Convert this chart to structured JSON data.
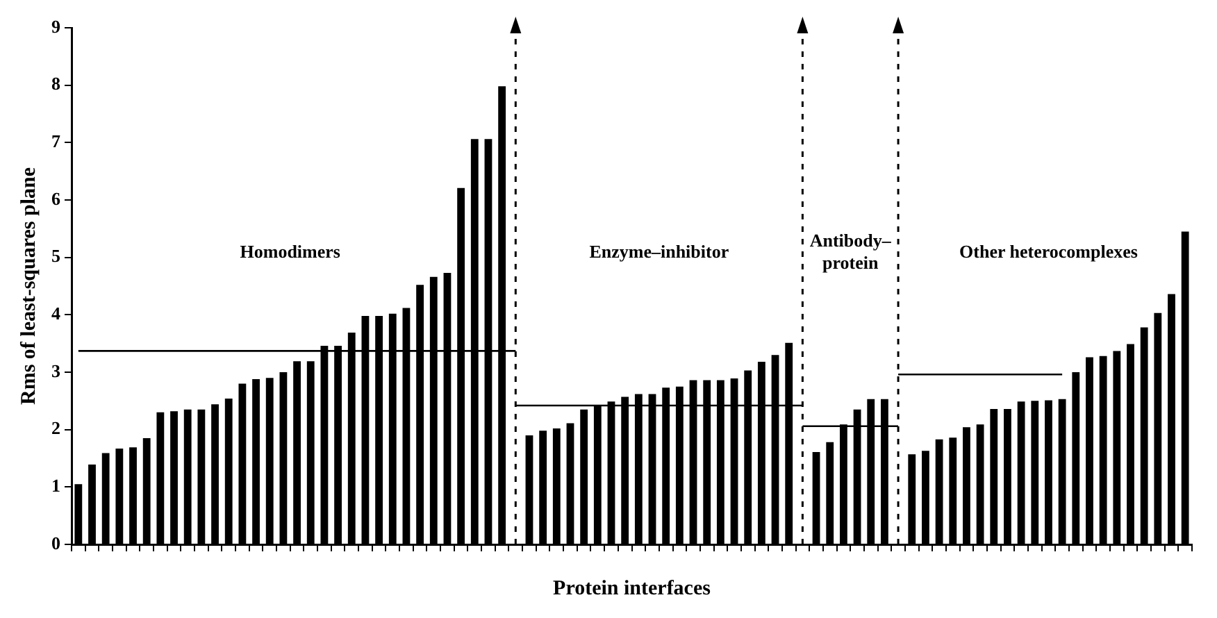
{
  "chart_data": {
    "type": "bar",
    "xlabel": "Protein interfaces",
    "ylabel": "Rms of least-squares plane",
    "categories": [
      null,
      null,
      null,
      null,
      null,
      null,
      null,
      null,
      null,
      null,
      null,
      null,
      null,
      null,
      null,
      null,
      null,
      null,
      null,
      null,
      null,
      null,
      null,
      null,
      null,
      null,
      null,
      null,
      null,
      null,
      null,
      null,
      null,
      null,
      null,
      null,
      null,
      null,
      null,
      null,
      null,
      null,
      null,
      null,
      null,
      null,
      null,
      null,
      null,
      null,
      null,
      null,
      null,
      null,
      null,
      null,
      null,
      null,
      null,
      null,
      null,
      null,
      null,
      null,
      null,
      null,
      null,
      null,
      null,
      null,
      null,
      null,
      null,
      null,
      null,
      null,
      null,
      null,
      null,
      null,
      null,
      null
    ],
    "series": [
      {
        "color": "#000000",
        "values": [
          1.05,
          1.39,
          1.59,
          1.67,
          1.69,
          1.85,
          2.3,
          2.32,
          2.35,
          2.35,
          2.44,
          2.54,
          2.8,
          2.88,
          2.9,
          3.0,
          3.19,
          3.19,
          3.46,
          3.46,
          3.69,
          3.98,
          3.98,
          4.02,
          4.12,
          4.52,
          4.66,
          4.73,
          6.21,
          7.06,
          7.06,
          7.98,
          null,
          1.9,
          1.98,
          2.02,
          2.11,
          2.35,
          2.42,
          2.49,
          2.57,
          2.62,
          2.62,
          2.73,
          2.75,
          2.86,
          2.86,
          2.86,
          2.89,
          3.03,
          3.18,
          3.3,
          3.51,
          null,
          1.61,
          1.78,
          2.09,
          2.35,
          2.53,
          2.53,
          null,
          1.57,
          1.63,
          1.83,
          1.86,
          2.04,
          2.09,
          2.36,
          2.36,
          2.49,
          2.5,
          2.51,
          2.53,
          3.0,
          3.26,
          3.28,
          3.37,
          3.49,
          3.78,
          4.03,
          4.36,
          5.45
        ]
      },
      {
        "type": "line",
        "color": "#000000",
        "values": [
          3.37,
          3.37,
          3.37,
          3.37,
          3.37,
          3.37,
          3.37,
          3.37,
          3.37,
          3.37,
          3.37,
          3.37,
          3.37,
          3.37,
          3.37,
          3.37,
          3.37,
          3.37,
          3.37,
          3.37,
          3.37,
          3.37,
          3.37,
          3.37,
          3.37,
          3.37,
          3.37,
          3.37,
          3.37,
          3.37,
          3.37,
          3.37,
          3.37,
          null,
          null,
          null,
          null,
          null,
          null,
          null,
          null,
          null,
          null,
          null,
          null,
          null,
          null,
          null,
          null,
          null,
          null,
          null,
          null,
          null,
          null,
          null,
          null,
          null,
          null,
          null,
          null,
          null,
          null,
          null,
          null,
          null,
          null,
          null,
          null,
          null,
          null,
          null,
          null,
          null,
          null,
          null,
          null,
          null,
          null,
          null,
          null,
          null
        ]
      },
      {
        "type": "line",
        "color": "#000000",
        "values": [
          null,
          null,
          null,
          null,
          null,
          null,
          null,
          null,
          null,
          null,
          null,
          null,
          null,
          null,
          null,
          null,
          null,
          null,
          null,
          null,
          null,
          null,
          null,
          null,
          null,
          null,
          null,
          null,
          null,
          null,
          null,
          null,
          2.42,
          2.42,
          2.42,
          2.42,
          2.42,
          2.42,
          2.42,
          2.42,
          2.42,
          2.42,
          2.42,
          2.42,
          2.42,
          2.42,
          2.42,
          2.42,
          2.42,
          2.42,
          2.42,
          2.42,
          2.42,
          2.42,
          null,
          null,
          null,
          null,
          null,
          null,
          null,
          null,
          null,
          null,
          null,
          null,
          null,
          null,
          null,
          null,
          null,
          null,
          null,
          null,
          null,
          null,
          null,
          null,
          null,
          null,
          null,
          null
        ]
      },
      {
        "type": "line",
        "color": "#000000",
        "values": [
          null,
          null,
          null,
          null,
          null,
          null,
          null,
          null,
          null,
          null,
          null,
          null,
          null,
          null,
          null,
          null,
          null,
          null,
          null,
          null,
          null,
          null,
          null,
          null,
          null,
          null,
          null,
          null,
          null,
          null,
          null,
          null,
          null,
          null,
          null,
          null,
          null,
          null,
          null,
          null,
          null,
          null,
          null,
          null,
          null,
          null,
          null,
          null,
          null,
          null,
          null,
          null,
          null,
          2.06,
          2.06,
          2.06,
          2.06,
          2.06,
          2.06,
          2.06,
          2.06,
          null,
          null,
          null,
          null,
          null,
          null,
          null,
          null,
          null,
          null,
          null,
          null,
          null,
          null,
          null,
          null,
          null,
          null,
          null,
          null,
          null
        ]
      },
      {
        "type": "line",
        "color": "#000000",
        "values": [
          null,
          null,
          null,
          null,
          null,
          null,
          null,
          null,
          null,
          null,
          null,
          null,
          null,
          null,
          null,
          null,
          null,
          null,
          null,
          null,
          null,
          null,
          null,
          null,
          null,
          null,
          null,
          null,
          null,
          null,
          null,
          null,
          null,
          null,
          null,
          null,
          null,
          null,
          null,
          null,
          null,
          null,
          null,
          null,
          null,
          null,
          null,
          null,
          null,
          null,
          null,
          null,
          null,
          null,
          null,
          null,
          null,
          null,
          null,
          null,
          2.96,
          2.96,
          2.96,
          2.96,
          2.96,
          2.96,
          2.96,
          2.96,
          2.96,
          2.96,
          2.96,
          2.96,
          2.96,
          null,
          null,
          null,
          null,
          null,
          null,
          null,
          null,
          null
        ]
      }
    ],
    "annotations": [
      "Homodimers",
      "Enzyme–inhibitor",
      "Antibody–\nprotein",
      "Other heterocomplexes"
    ],
    "ylim": [
      0,
      9
    ],
    "yticks": [
      0,
      1,
      2,
      3,
      4,
      5,
      6,
      7,
      8,
      9
    ],
    "grid": false,
    "legend": false,
    "tick_labels": "y"
  }
}
